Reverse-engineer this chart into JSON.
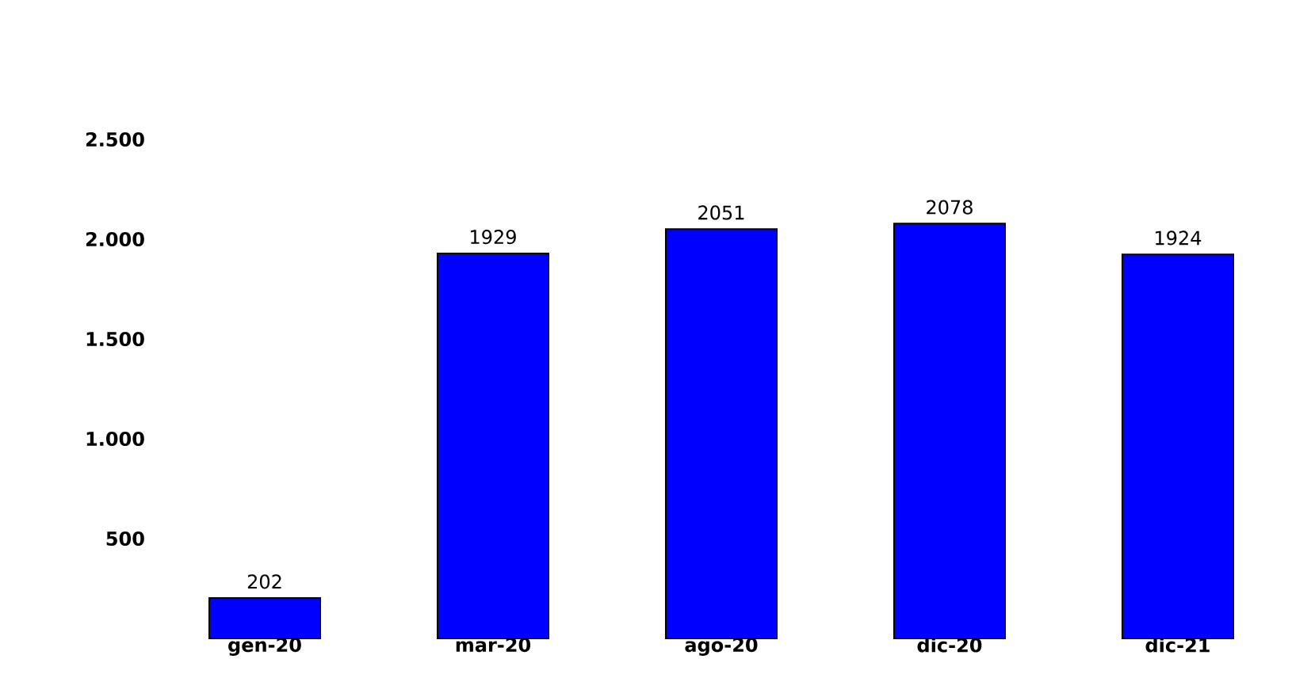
{
  "chart_data": {
    "type": "bar",
    "categories": [
      "gen-20",
      "mar-20",
      "ago-20",
      "dic-20",
      "dic-21"
    ],
    "values": [
      202,
      1929,
      2051,
      2078,
      1924
    ],
    "color": "#0000ff",
    "data_labels": true,
    "ylim": [
      0,
      2500
    ],
    "yticks": [
      {
        "value": 500,
        "label": "500"
      },
      {
        "value": 1000,
        "label": "1.000"
      },
      {
        "value": 1500,
        "label": "1.500"
      },
      {
        "value": 2000,
        "label": "2.000"
      },
      {
        "value": 2500,
        "label": "2.500"
      }
    ]
  }
}
